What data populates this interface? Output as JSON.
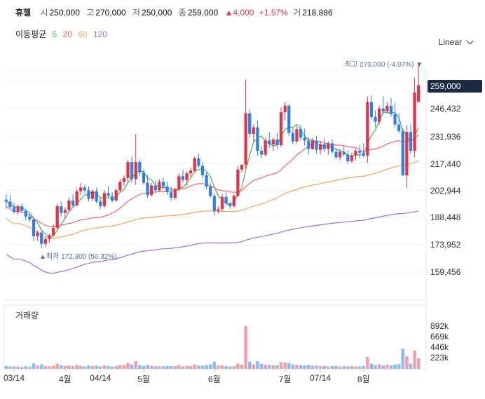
{
  "header": {
    "name": "휴젤",
    "open_label": "시",
    "open": "250,000",
    "high_label": "고",
    "high": "270,000",
    "low_label": "저",
    "low": "250,000",
    "close_label": "종",
    "close": "259,000",
    "change": "▲4,000",
    "change_pct": "+1.57%",
    "volume_label": "거",
    "volume": "218,886"
  },
  "ma_legend": {
    "title": "이동평균",
    "periods": [
      "5",
      "20",
      "60",
      "120"
    ],
    "colors": [
      "#4caf50",
      "#f0686a",
      "#f2a55c",
      "#9c6ee5"
    ]
  },
  "scale_selector": "Linear",
  "volume_title": "거래량",
  "colors": {
    "up": "#e0334a",
    "down": "#2f7fe6",
    "price_tag": "#1c2a44"
  },
  "chart_data": {
    "type": "candlestick",
    "y_ticks": [
      "246,432",
      "231,936",
      "217,440",
      "202,944",
      "188,448",
      "173,952",
      "159,456"
    ],
    "y_tick_values": [
      246432,
      231936,
      217440,
      202944,
      188448,
      173952,
      159456
    ],
    "last_price_label": "259,000",
    "high_annotation": "최고 270,000 (-4.07%)",
    "low_annotation": "최저 172,300 (50.32%)",
    "x_ticks": [
      "03/14",
      "4월",
      "04/14",
      "5월",
      "6월",
      "7월",
      "07/14",
      "8월"
    ],
    "x_tick_index": [
      2,
      15,
      24,
      35,
      53,
      71,
      80,
      91
    ],
    "candles": [
      [
        198000,
        201000,
        193000,
        197000
      ],
      [
        197000,
        200500,
        193500,
        194000
      ],
      [
        194000,
        196500,
        190500,
        191500
      ],
      [
        191500,
        195500,
        190000,
        194500
      ],
      [
        194500,
        196000,
        191000,
        192000
      ],
      [
        192000,
        193000,
        187000,
        189000
      ],
      [
        189000,
        190500,
        186000,
        187500
      ],
      [
        187500,
        188000,
        176000,
        178500
      ],
      [
        178500,
        181500,
        176000,
        180500
      ],
      [
        180500,
        181500,
        172300,
        174500
      ],
      [
        174500,
        178000,
        173000,
        177000
      ],
      [
        177000,
        180000,
        175000,
        179000
      ],
      [
        179000,
        185000,
        178000,
        183000
      ],
      [
        183000,
        196000,
        182000,
        194500
      ],
      [
        194500,
        197000,
        189000,
        191000
      ],
      [
        191000,
        194000,
        188000,
        192500
      ],
      [
        192500,
        199000,
        191500,
        197500
      ],
      [
        197500,
        201000,
        194000,
        195000
      ],
      [
        195000,
        204000,
        194500,
        202500
      ],
      [
        202500,
        207000,
        200500,
        204500
      ],
      [
        204500,
        206000,
        201500,
        203000
      ],
      [
        203000,
        205000,
        197000,
        198500
      ],
      [
        198500,
        203500,
        197000,
        202500
      ],
      [
        202500,
        204500,
        196000,
        197000
      ],
      [
        197000,
        199000,
        193000,
        194500
      ],
      [
        194500,
        203000,
        193500,
        201500
      ],
      [
        201500,
        205000,
        199000,
        200000
      ],
      [
        200000,
        202000,
        196500,
        197500
      ],
      [
        197500,
        204000,
        197000,
        203000
      ],
      [
        203000,
        209000,
        202000,
        207500
      ],
      [
        207500,
        211000,
        205500,
        209500
      ],
      [
        209500,
        219000,
        207500,
        218000
      ],
      [
        218000,
        221000,
        207000,
        209000
      ],
      [
        209000,
        233000,
        206000,
        218000
      ],
      [
        218000,
        219500,
        210500,
        212500
      ],
      [
        212500,
        214000,
        206000,
        207000
      ],
      [
        207000,
        211000,
        199000,
        200500
      ],
      [
        200500,
        207000,
        199500,
        205500
      ],
      [
        205500,
        208000,
        201500,
        203000
      ],
      [
        203000,
        209000,
        202000,
        207500
      ],
      [
        207500,
        210000,
        203500,
        205000
      ],
      [
        205000,
        207500,
        200500,
        202000
      ],
      [
        202000,
        205000,
        197500,
        199000
      ],
      [
        199000,
        204500,
        198000,
        203500
      ],
      [
        203500,
        212000,
        202500,
        210500
      ],
      [
        210500,
        214000,
        207000,
        208500
      ],
      [
        208500,
        213000,
        205500,
        212000
      ],
      [
        212000,
        215000,
        210000,
        213500
      ],
      [
        213500,
        221000,
        212500,
        220000
      ],
      [
        220000,
        222500,
        215000,
        216000
      ],
      [
        216000,
        218000,
        209500,
        211000
      ],
      [
        211000,
        212500,
        203500,
        205000
      ],
      [
        205000,
        207000,
        199000,
        200000
      ],
      [
        200000,
        201500,
        189500,
        192000
      ],
      [
        192000,
        194500,
        190500,
        193000
      ],
      [
        193000,
        201000,
        192000,
        199500
      ],
      [
        199500,
        202000,
        195000,
        196000
      ],
      [
        196000,
        197000,
        193000,
        194500
      ],
      [
        194500,
        201000,
        193500,
        200000
      ],
      [
        200000,
        216000,
        199500,
        214000
      ],
      [
        214000,
        217000,
        212500,
        216500
      ],
      [
        216500,
        262000,
        214500,
        244000
      ],
      [
        244000,
        246000,
        231000,
        233000
      ],
      [
        233000,
        238000,
        229000,
        236500
      ],
      [
        236500,
        240000,
        221500,
        224000
      ],
      [
        224000,
        226500,
        220000,
        222000
      ],
      [
        222000,
        231000,
        221000,
        229500
      ],
      [
        229500,
        234000,
        225500,
        227500
      ],
      [
        227500,
        231000,
        224000,
        230000
      ],
      [
        230000,
        233500,
        225000,
        227000
      ],
      [
        227000,
        247000,
        226000,
        244500
      ],
      [
        244500,
        250000,
        240000,
        248000
      ],
      [
        248000,
        249000,
        232000,
        233500
      ],
      [
        233500,
        236000,
        227500,
        229000
      ],
      [
        229000,
        237000,
        228000,
        235500
      ],
      [
        235500,
        238000,
        229500,
        231000
      ],
      [
        231000,
        236000,
        227000,
        229500
      ],
      [
        229500,
        231000,
        222000,
        225000
      ],
      [
        225000,
        231000,
        224500,
        229500
      ],
      [
        229500,
        232000,
        222500,
        224500
      ],
      [
        224500,
        229000,
        222000,
        227500
      ],
      [
        227500,
        230500,
        223500,
        225000
      ],
      [
        225000,
        229000,
        222000,
        228000
      ],
      [
        228000,
        230000,
        222500,
        223500
      ],
      [
        223500,
        225500,
        219500,
        220500
      ],
      [
        220500,
        225000,
        219000,
        223500
      ],
      [
        223500,
        227000,
        221000,
        222000
      ],
      [
        222000,
        224500,
        217000,
        218500
      ],
      [
        218500,
        223000,
        217500,
        221500
      ],
      [
        221500,
        225000,
        219000,
        224000
      ],
      [
        224000,
        227000,
        220000,
        223000
      ],
      [
        223000,
        228000,
        220500,
        221500
      ],
      [
        221500,
        253000,
        217500,
        250000
      ],
      [
        250000,
        253500,
        240500,
        242000
      ],
      [
        242000,
        245500,
        236500,
        239500
      ],
      [
        239500,
        248000,
        238000,
        246500
      ],
      [
        246500,
        253000,
        243500,
        245000
      ],
      [
        245000,
        250000,
        244000,
        248000
      ],
      [
        248000,
        252000,
        242000,
        243500
      ],
      [
        243500,
        249500,
        236500,
        238000
      ],
      [
        238000,
        244000,
        233500,
        234500
      ],
      [
        234500,
        236000,
        210500,
        211000
      ],
      [
        211000,
        237500,
        204000,
        234000
      ],
      [
        234000,
        238000,
        222500,
        224000
      ],
      [
        224000,
        263000,
        220500,
        255000
      ],
      [
        250000,
        270000,
        250000,
        259000
      ]
    ],
    "ma_series": [
      {
        "name": "5",
        "period": 5
      },
      {
        "name": "20",
        "period": 20
      },
      {
        "name": "60",
        "period": 60
      },
      {
        "name": "120",
        "period": 120
      }
    ],
    "volume_ticks": [
      "892k",
      "669k",
      "446k",
      "223k"
    ],
    "volume_tick_values": [
      892000,
      669000,
      446000,
      223000
    ],
    "volume": [
      60000,
      45000,
      52000,
      48000,
      40000,
      55000,
      38000,
      120000,
      70000,
      95000,
      60000,
      50000,
      65000,
      110000,
      75000,
      60000,
      70000,
      55000,
      85000,
      62000,
      48000,
      70000,
      58000,
      65000,
      52000,
      72000,
      60000,
      45000,
      58000,
      80000,
      75000,
      120000,
      90000,
      160000,
      80000,
      60000,
      85000,
      65000,
      50000,
      60000,
      55000,
      62000,
      58000,
      60000,
      75000,
      52000,
      64000,
      58000,
      90000,
      70000,
      65000,
      80000,
      95000,
      150000,
      70000,
      75000,
      55000,
      48000,
      60000,
      110000,
      85000,
      892000,
      150000,
      95000,
      160000,
      110000,
      90000,
      80000,
      75000,
      70000,
      140000,
      130000,
      120000,
      90000,
      85000,
      75000,
      70000,
      80000,
      65000,
      70000,
      55000,
      60000,
      52000,
      58000,
      65000,
      50000,
      55000,
      48000,
      58000,
      52000,
      50000,
      60000,
      250000,
      110000,
      80000,
      95000,
      70000,
      85000,
      72000,
      90000,
      100000,
      420000,
      260000,
      110000,
      380000,
      218886
    ]
  }
}
